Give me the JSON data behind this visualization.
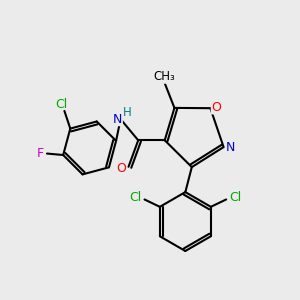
{
  "bg_color": "#ebebeb",
  "atom_colors": {
    "C": "#000000",
    "N": "#0000cd",
    "O": "#ff0000",
    "Cl": "#00aa00",
    "F": "#cc00cc",
    "H": "#008080"
  }
}
